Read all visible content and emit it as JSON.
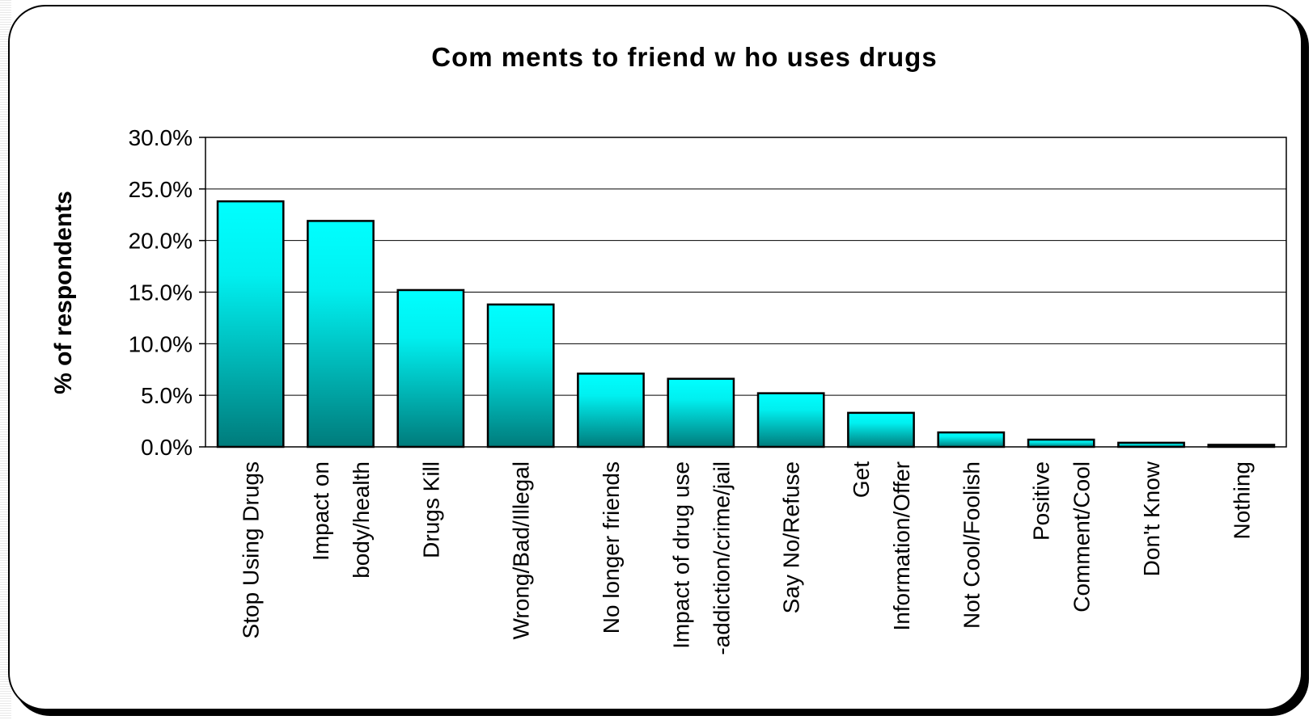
{
  "chart_data": {
    "type": "bar",
    "title": "Com ments to friend w ho uses drugs",
    "xlabel": "",
    "ylabel": "% of respondents",
    "ylim": [
      0,
      30
    ],
    "ytick_step": 5,
    "ytick_labels": [
      "0.0%",
      "5.0%",
      "10.0%",
      "15.0%",
      "20.0%",
      "25.0%",
      "30.0%"
    ],
    "grid": true,
    "legend": "none",
    "categories": [
      [
        "Stop Using Drugs"
      ],
      [
        "Impact on",
        "body/health"
      ],
      [
        "Drugs Kill"
      ],
      [
        "Wrong/Bad/Illegal"
      ],
      [
        "No longer friends"
      ],
      [
        "Impact of drug use",
        "-addiction/crime/jail"
      ],
      [
        "Say No/Refuse"
      ],
      [
        "Get",
        "Information/Offer"
      ],
      [
        "Not Cool/Foolish"
      ],
      [
        "Positive",
        "Comment/Cool"
      ],
      [
        "Don't Know"
      ],
      [
        "Nothing"
      ]
    ],
    "values": [
      23.8,
      21.9,
      15.2,
      13.8,
      7.1,
      6.6,
      5.2,
      3.3,
      1.4,
      0.7,
      0.4,
      0.2
    ],
    "colors": {
      "bar_top": "#00ffff",
      "bar_bottom": "#007b7b",
      "grid": "#000000",
      "border": "#000000"
    }
  }
}
